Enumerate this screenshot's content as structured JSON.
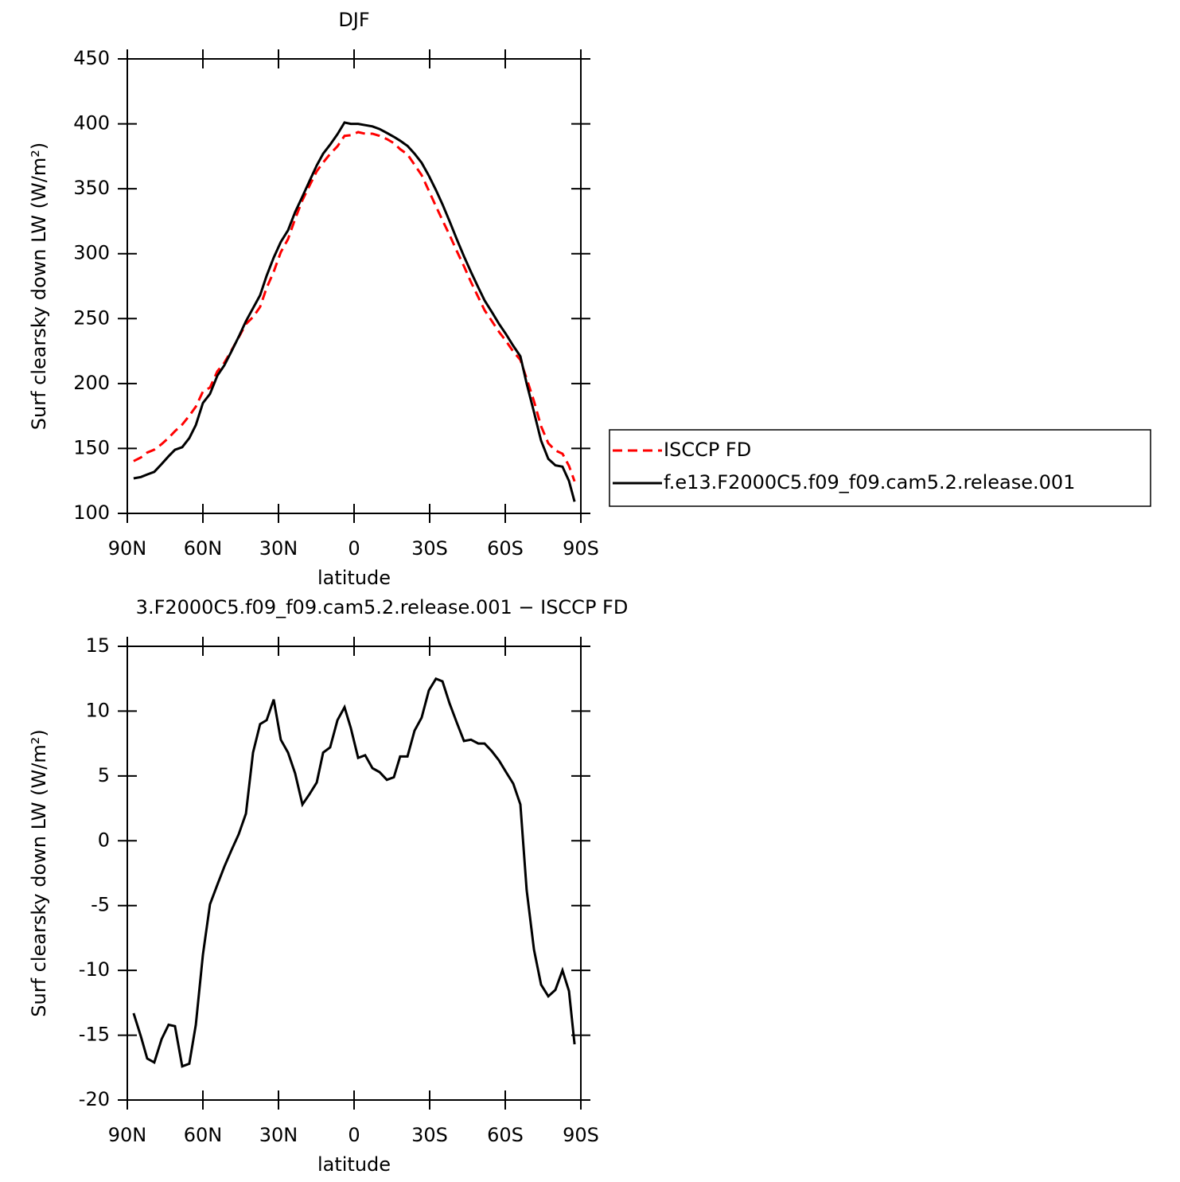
{
  "chart_data": [
    {
      "type": "line",
      "title": "DJF",
      "xlabel": "latitude",
      "ylabel": "Surf clearsky down LW (W/m²)",
      "x": [
        87.5,
        84.6,
        82.1,
        79.3,
        76.4,
        73.6,
        71.1,
        68.2,
        65.4,
        62.8,
        60,
        57.2,
        54.3,
        51.5,
        48.6,
        45.8,
        42.9,
        40.1,
        37.3,
        34.7,
        31.9,
        29.1,
        26.2,
        23.4,
        20.5,
        17.7,
        14.8,
        12.3,
        9.5,
        6.6,
        3.8,
        1.3,
        -1.6,
        -4.4,
        -7.3,
        -10.1,
        -13,
        -15.8,
        -18.3,
        -21.2,
        -24,
        -26.8,
        -29.7,
        -32.5,
        -35.1,
        -37.9,
        -40.8,
        -43.6,
        -46.4,
        -49.3,
        -51.8,
        -54.7,
        -57.5,
        -60.3,
        -63.2,
        -66,
        -68.5,
        -71.4,
        -74.2,
        -77.1,
        -79.9,
        -82.7,
        -85.3,
        -87.5
      ],
      "series": [
        {
          "name": "ISCCP FD",
          "color": "#ff0000",
          "dash": true,
          "values": [
            140.3,
            143.1,
            146.8,
            149.1,
            153.3,
            158.2,
            163.3,
            168.4,
            175.2,
            182.2,
            193.8,
            196.9,
            209.4,
            216,
            225.7,
            235.5,
            245.9,
            251.2,
            259,
            273.7,
            286.1,
            301.2,
            311.2,
            326.8,
            341.2,
            352.4,
            363.5,
            370.2,
            376.8,
            382.7,
            390.7,
            391.3,
            393.6,
            392.4,
            392.4,
            390.7,
            388.3,
            385.1,
            380.5,
            376.5,
            368.5,
            360.5,
            348.4,
            336.5,
            325.7,
            314.4,
            301.9,
            290.3,
            278.2,
            266.5,
            256.5,
            248.1,
            239.8,
            232.7,
            224.6,
            218.2,
            203.8,
            186.4,
            167.1,
            154,
            148.5,
            146,
            136.6,
            124.7
          ]
        },
        {
          "name": "f.e13.F2000C5.f09_f09.cam5.2.release.001",
          "color": "#000000",
          "dash": false,
          "values": [
            127,
            128,
            130,
            132,
            138,
            144,
            149,
            151,
            158,
            168,
            185,
            192,
            206,
            214,
            225,
            236,
            248,
            258,
            268,
            283,
            297,
            309,
            318,
            332,
            344,
            356,
            368,
            377,
            384,
            392,
            401,
            400,
            400,
            399,
            398,
            396,
            393,
            390,
            387,
            383,
            377,
            370,
            360,
            349,
            338,
            325,
            311,
            298,
            286,
            274,
            264,
            255,
            246,
            238,
            229,
            221,
            200,
            178,
            156,
            142,
            137,
            136,
            125,
            109
          ]
        }
      ],
      "xlim": [
        90,
        -90
      ],
      "xticks": [
        {
          "value": 90,
          "label": "90N"
        },
        {
          "value": 60,
          "label": "60N"
        },
        {
          "value": 30,
          "label": "30N"
        },
        0,
        {
          "value": -30,
          "label": "30S"
        },
        {
          "value": -60,
          "label": "60S"
        },
        {
          "value": -90,
          "label": "90S"
        }
      ],
      "ylim": [
        100,
        450
      ],
      "yticks": [
        100,
        150,
        200,
        250,
        300,
        350,
        400,
        450
      ],
      "legend": "right"
    },
    {
      "type": "line",
      "title": "3.F2000C5.f09_f09.cam5.2.release.001 − ISCCP FD",
      "xlabel": "latitude",
      "ylabel": "Surf clearsky down LW (W/m²)",
      "x": [
        87.5,
        84.6,
        82.1,
        79.3,
        76.4,
        73.6,
        71.1,
        68.2,
        65.4,
        62.8,
        60,
        57.2,
        54.3,
        51.5,
        48.6,
        45.8,
        42.9,
        40.1,
        37.3,
        34.7,
        31.9,
        29.1,
        26.2,
        23.4,
        20.5,
        17.7,
        14.8,
        12.3,
        9.5,
        6.6,
        3.8,
        1.3,
        -1.6,
        -4.4,
        -7.3,
        -10.1,
        -13,
        -15.8,
        -18.3,
        -21.2,
        -24,
        -26.8,
        -29.7,
        -32.5,
        -35.1,
        -37.9,
        -40.8,
        -43.6,
        -46.4,
        -49.3,
        -51.8,
        -54.7,
        -57.5,
        -60.3,
        -63.2,
        -66,
        -68.5,
        -71.4,
        -74.2,
        -77.1,
        -79.9,
        -82.7,
        -85.3,
        -87.5
      ],
      "series": [
        {
          "color": "#000000",
          "dash": false,
          "values": [
            -13.3,
            -15.1,
            -16.8,
            -17.1,
            -15.3,
            -14.2,
            -14.3,
            -17.4,
            -17.2,
            -14.2,
            -8.8,
            -4.9,
            -3.4,
            -2,
            -0.7,
            0.5,
            2.1,
            6.8,
            9,
            9.3,
            10.9,
            7.8,
            6.8,
            5.2,
            2.8,
            3.6,
            4.5,
            6.8,
            7.2,
            9.3,
            10.3,
            8.7,
            6.4,
            6.6,
            5.6,
            5.3,
            4.7,
            4.9,
            6.5,
            6.5,
            8.5,
            9.5,
            11.6,
            12.5,
            12.3,
            10.6,
            9.1,
            7.7,
            7.8,
            7.5,
            7.5,
            6.9,
            6.2,
            5.3,
            4.4,
            2.8,
            -3.8,
            -8.4,
            -11.1,
            -12,
            -11.5,
            -10,
            -11.6,
            -15.7
          ]
        }
      ],
      "xlim": [
        90,
        -90
      ],
      "xticks": [
        {
          "value": 90,
          "label": "90N"
        },
        {
          "value": 60,
          "label": "60N"
        },
        {
          "value": 30,
          "label": "30N"
        },
        0,
        {
          "value": -30,
          "label": "30S"
        },
        {
          "value": -60,
          "label": "60S"
        },
        {
          "value": -90,
          "label": "90S"
        }
      ],
      "ylim": [
        -20,
        15
      ],
      "yticks": [
        -20,
        -15,
        -10,
        -5,
        0,
        5,
        10,
        15
      ]
    }
  ]
}
